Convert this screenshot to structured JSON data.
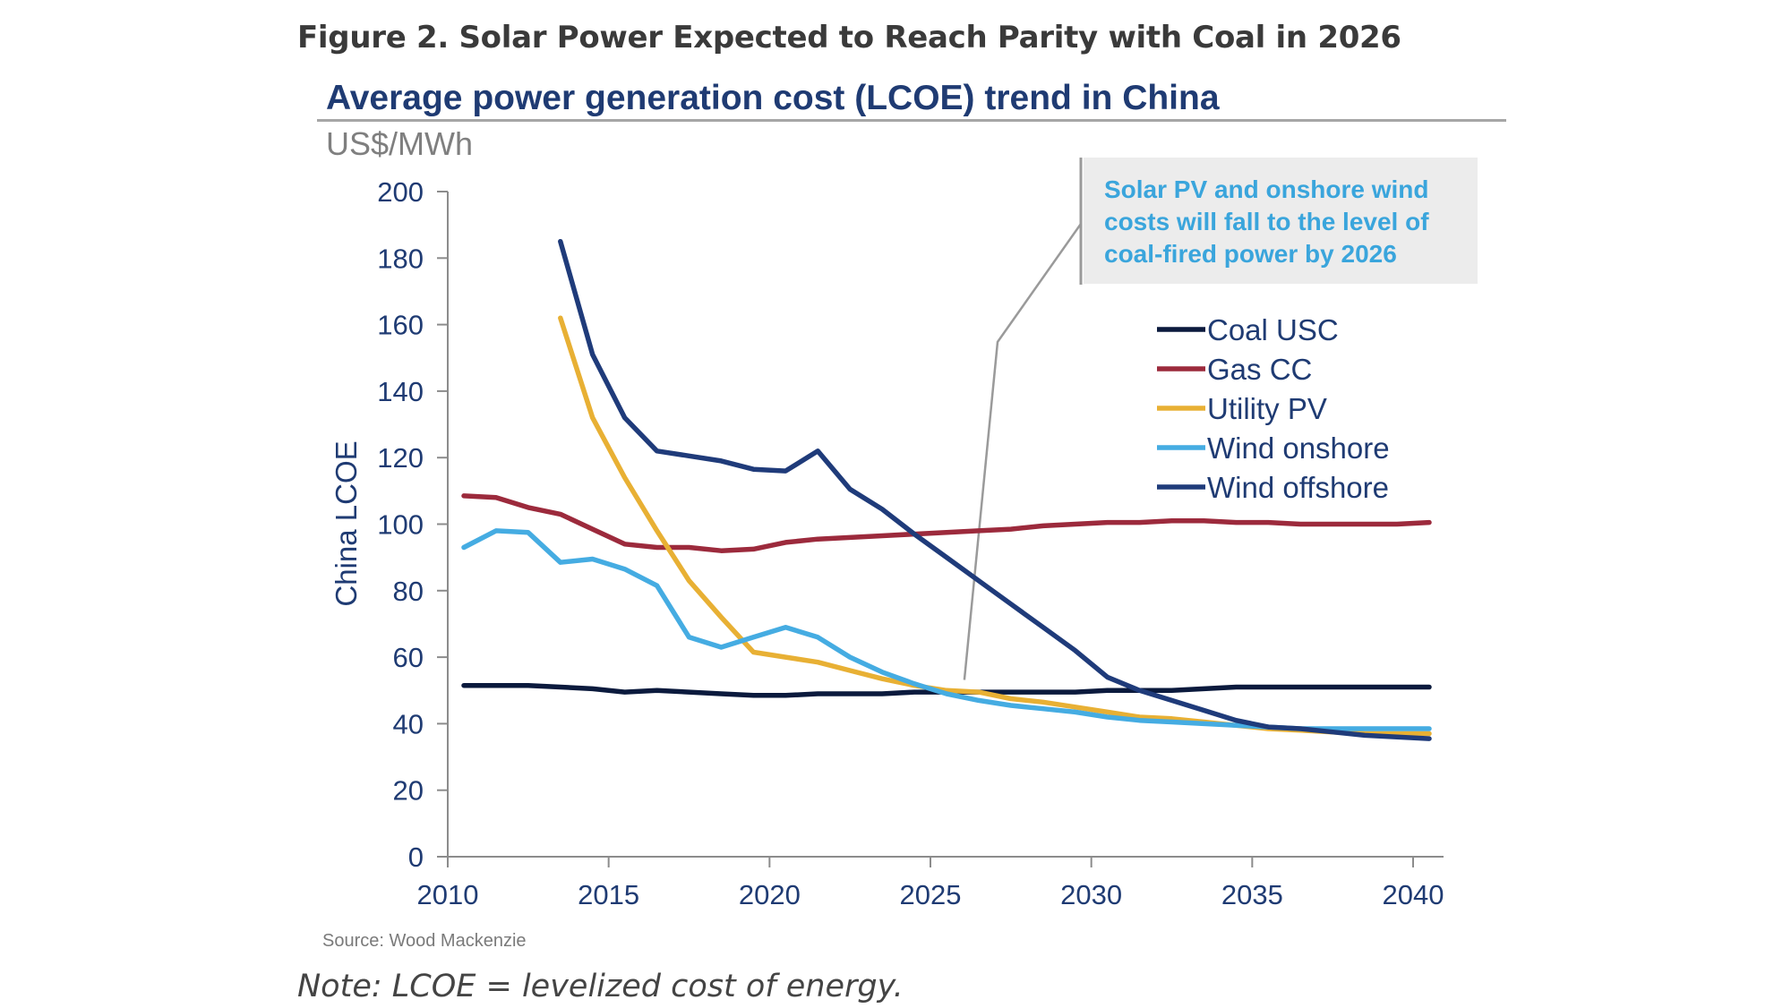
{
  "figure": {
    "title": "Figure 2. Solar Power Expected to Reach Parity with Coal in 2026",
    "source": "Source: Wood Mackenzie",
    "note": "Note: LCOE = levelized cost of energy."
  },
  "chart_data": {
    "type": "line",
    "title": "Average power generation cost (LCOE) trend in China",
    "subtitle": "US$/MWh",
    "xlabel": "",
    "ylabel": "China LCOE",
    "xlim": [
      2010,
      2041
    ],
    "ylim": [
      0,
      200
    ],
    "x_ticks": [
      2010,
      2015,
      2020,
      2025,
      2030,
      2035,
      2040
    ],
    "y_ticks": [
      0,
      20,
      40,
      60,
      80,
      100,
      120,
      140,
      160,
      180,
      200
    ],
    "grid": false,
    "legend_position": "right, below annotation",
    "annotation": {
      "lines": [
        "Solar PV and onshore wind",
        "costs will fall to the level of",
        "coal-fired power by 2026"
      ],
      "points_to": {
        "x": 2026,
        "y": 51
      }
    },
    "series": [
      {
        "name": "Coal USC",
        "color": "#0b1a3d",
        "x": [
          2010.5,
          2011.5,
          2012.5,
          2013.5,
          2014.5,
          2015.5,
          2016.5,
          2017.5,
          2018.5,
          2019.5,
          2020.5,
          2021.5,
          2022.5,
          2023.5,
          2024.5,
          2025.5,
          2026.5,
          2027.5,
          2028.5,
          2029.5,
          2030.5,
          2031.5,
          2032.5,
          2033.5,
          2034.5,
          2035.5,
          2036.5,
          2037.5,
          2038.5,
          2039.5,
          2040.5
        ],
        "y": [
          51.5,
          51.5,
          51.5,
          51,
          50.5,
          49.5,
          50,
          49.5,
          49,
          48.5,
          48.5,
          49,
          49,
          49,
          49.5,
          49.5,
          49.5,
          49.5,
          49.5,
          49.5,
          50,
          50,
          50,
          50.5,
          51,
          51,
          51,
          51,
          51,
          51,
          51
        ]
      },
      {
        "name": "Gas CC",
        "color": "#9c2a3c",
        "x": [
          2010.5,
          2011.5,
          2012.5,
          2013.5,
          2014.5,
          2015.5,
          2016.5,
          2017.5,
          2018.5,
          2019.5,
          2020.5,
          2021.5,
          2022.5,
          2023.5,
          2024.5,
          2025.5,
          2026.5,
          2027.5,
          2028.5,
          2029.5,
          2030.5,
          2031.5,
          2032.5,
          2033.5,
          2034.5,
          2035.5,
          2036.5,
          2037.5,
          2038.5,
          2039.5,
          2040.5
        ],
        "y": [
          108.5,
          108,
          105,
          103,
          98.5,
          94,
          93,
          93,
          92,
          92.5,
          94.5,
          95.5,
          96,
          96.5,
          97,
          97.5,
          98,
          98.5,
          99.5,
          100,
          100.5,
          100.5,
          101,
          101,
          100.5,
          100.5,
          100,
          100,
          100,
          100,
          100.5
        ]
      },
      {
        "name": "Utility PV",
        "color": "#e8b034",
        "x": [
          2013.5,
          2014.5,
          2015.5,
          2016.5,
          2017.5,
          2018.5,
          2019.5,
          2020.5,
          2021.5,
          2022.5,
          2023.5,
          2024.5,
          2025.5,
          2026.5,
          2027.5,
          2028.5,
          2029.5,
          2030.5,
          2031.5,
          2032.5,
          2033.5,
          2034.5,
          2035.5,
          2036.5,
          2037.5,
          2038.5,
          2039.5,
          2040.5
        ],
        "y": [
          162,
          132,
          114,
          98,
          83,
          72,
          61.5,
          60,
          58.5,
          56,
          53.5,
          51.5,
          50,
          49.5,
          47.5,
          46.5,
          45,
          43.5,
          42,
          41.5,
          40.5,
          39.5,
          38.5,
          38,
          37.5,
          37,
          37,
          37
        ]
      },
      {
        "name": "Wind onshore",
        "color": "#45ace2",
        "x": [
          2010.5,
          2011.5,
          2012.5,
          2013.5,
          2014.5,
          2015.5,
          2016.5,
          2017.5,
          2018.5,
          2019.5,
          2020.5,
          2021.5,
          2022.5,
          2023.5,
          2024.5,
          2025.5,
          2026.5,
          2027.5,
          2028.5,
          2029.5,
          2030.5,
          2031.5,
          2032.5,
          2033.5,
          2034.5,
          2035.5,
          2036.5,
          2037.5,
          2038.5,
          2039.5,
          2040.5
        ],
        "y": [
          93,
          98,
          97.5,
          88.5,
          89.5,
          86.5,
          81.5,
          66,
          63,
          66,
          69,
          66,
          60,
          55.5,
          52,
          49,
          47,
          45.5,
          44.5,
          43.5,
          42,
          41,
          40.5,
          40,
          39.5,
          39,
          38.5,
          38.5,
          38.5,
          38.5,
          38.5
        ]
      },
      {
        "name": "Wind offshore",
        "color": "#1f3b7a",
        "x": [
          2013.5,
          2014.5,
          2015.5,
          2016.5,
          2017.5,
          2018.5,
          2019.5,
          2020.5,
          2021.5,
          2022.5,
          2023.5,
          2024.5,
          2025.5,
          2026.5,
          2027.5,
          2028.5,
          2029.5,
          2030.5,
          2031.5,
          2032.5,
          2033.5,
          2034.5,
          2035.5,
          2036.5,
          2037.5,
          2038.5,
          2039.5,
          2040.5
        ],
        "y": [
          185,
          151,
          132,
          122,
          120.5,
          119,
          116.5,
          116,
          122,
          110.5,
          104.5,
          97,
          90,
          83,
          76,
          69,
          62,
          54,
          50,
          47,
          44,
          41,
          39,
          38.5,
          37.5,
          36.5,
          36,
          35.5
        ]
      }
    ]
  }
}
